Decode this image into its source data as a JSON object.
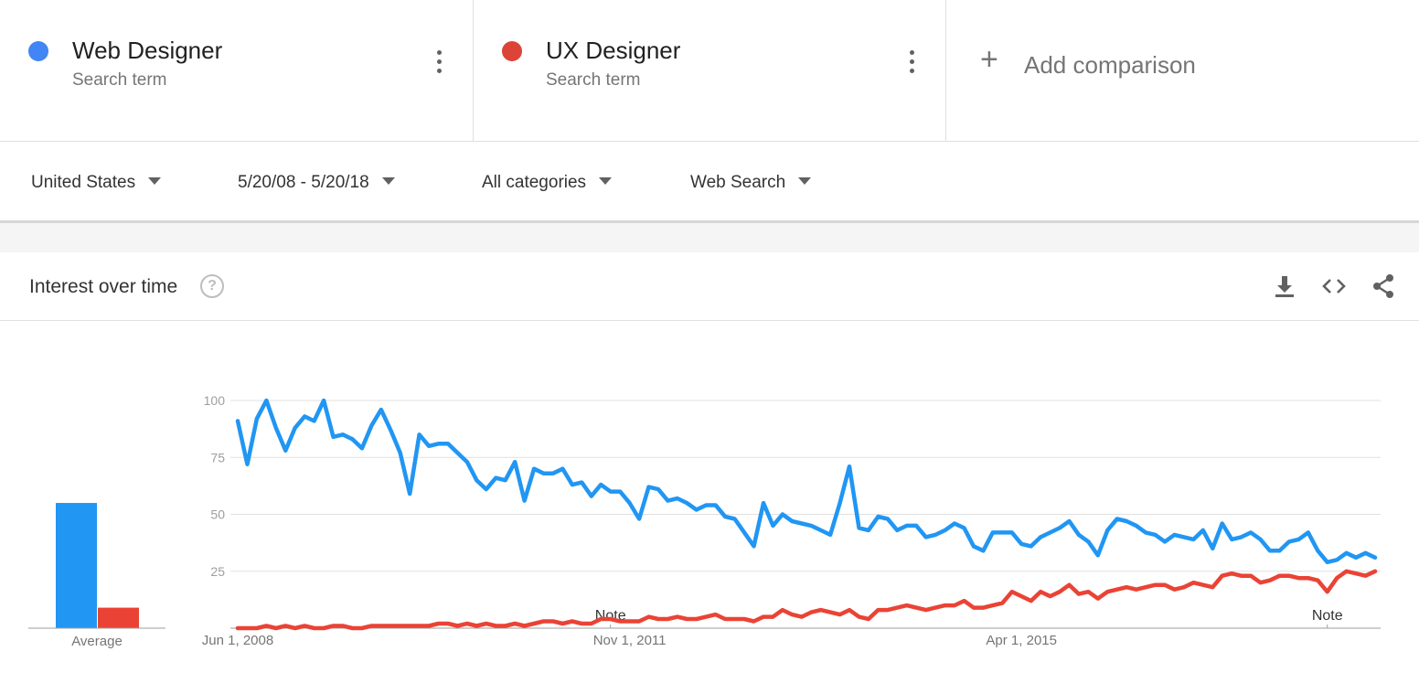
{
  "terms": [
    {
      "name": "Web Designer",
      "subtitle": "Search term",
      "color": "#4285f4"
    },
    {
      "name": "UX Designer",
      "subtitle": "Search term",
      "color": "#db4437"
    }
  ],
  "add_comparison": {
    "label": "Add comparison",
    "icon": "plus-icon"
  },
  "filters": {
    "region": "United States",
    "date_range": "5/20/08 - 5/20/18",
    "category": "All categories",
    "search_type": "Web Search"
  },
  "panel": {
    "title": "Interest over time",
    "help_symbol": "?",
    "tools": [
      "download-icon",
      "embed-icon",
      "share-icon"
    ]
  },
  "chart_data": {
    "type": "line",
    "ylim": [
      0,
      100
    ],
    "yticks": [
      "100",
      "75",
      "50",
      "25"
    ],
    "ytick_values": [
      100,
      75,
      50,
      25
    ],
    "xtick_labels": [
      "Jun 1, 2008",
      "Nov 1, 2011",
      "Apr 1, 2015"
    ],
    "xtick_months": [
      0,
      41,
      82
    ],
    "notes": [
      {
        "label": "Note",
        "month": 39
      },
      {
        "label": "Note",
        "month": 114
      }
    ],
    "average": {
      "label": "Average",
      "values": [
        55,
        9
      ]
    },
    "series": [
      {
        "name": "Web Designer",
        "color": "#2196f3",
        "values": [
          91,
          72,
          92,
          100,
          88,
          78,
          88,
          93,
          91,
          100,
          84,
          85,
          83,
          79,
          89,
          96,
          87,
          77,
          59,
          85,
          80,
          81,
          81,
          77,
          73,
          65,
          61,
          66,
          65,
          73,
          56,
          70,
          68,
          68,
          70,
          63,
          64,
          58,
          63,
          60,
          60,
          55,
          48,
          62,
          61,
          56,
          57,
          55,
          52,
          54,
          54,
          49,
          48,
          42,
          36,
          55,
          45,
          50,
          47,
          46,
          45,
          43,
          41,
          55,
          71,
          44,
          43,
          49,
          48,
          43,
          45,
          45,
          40,
          41,
          43,
          46,
          44,
          36,
          34,
          42,
          42,
          42,
          37,
          36,
          40,
          42,
          44,
          47,
          41,
          38,
          32,
          43,
          48,
          47,
          45,
          42,
          41,
          38,
          41,
          40,
          39,
          43,
          35,
          46,
          39,
          40,
          42,
          39,
          34,
          34,
          38,
          39,
          42,
          34,
          29,
          30,
          33,
          31,
          33,
          31
        ]
      },
      {
        "name": "UX Designer",
        "color": "#ea4335",
        "values": [
          0,
          0,
          0,
          1,
          0,
          1,
          0,
          1,
          0,
          0,
          1,
          1,
          0,
          0,
          1,
          1,
          1,
          1,
          1,
          1,
          1,
          2,
          2,
          1,
          2,
          1,
          2,
          1,
          1,
          2,
          1,
          2,
          3,
          3,
          2,
          3,
          2,
          2,
          4,
          4,
          3,
          3,
          3,
          5,
          4,
          4,
          5,
          4,
          4,
          5,
          6,
          4,
          4,
          4,
          3,
          5,
          5,
          8,
          6,
          5,
          7,
          8,
          7,
          6,
          8,
          5,
          4,
          8,
          8,
          9,
          10,
          9,
          8,
          9,
          10,
          10,
          12,
          9,
          9,
          10,
          11,
          16,
          14,
          12,
          16,
          14,
          16,
          19,
          15,
          16,
          13,
          16,
          17,
          18,
          17,
          18,
          19,
          19,
          17,
          18,
          20,
          19,
          18,
          23,
          24,
          23,
          23,
          20,
          21,
          23,
          23,
          22,
          22,
          21,
          16,
          22,
          25,
          24,
          23,
          25
        ]
      }
    ]
  }
}
